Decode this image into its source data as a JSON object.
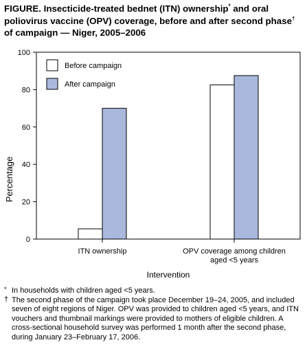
{
  "figure": {
    "title_main": "FIGURE. Insecticide-treated bednet (ITN) ownership",
    "title_star": "*",
    "title_mid": " and oral poliovirus vaccine (OPV) coverage, before and after second phase",
    "title_dagger": "†",
    "title_end": " of campaign — Niger, 2005–2006"
  },
  "chart_data": {
    "type": "bar",
    "ylabel": "Percentage",
    "xlabel": "Intervention",
    "ylim": [
      0,
      100
    ],
    "yticks": [
      0,
      20,
      40,
      60,
      80,
      100
    ],
    "grid": false,
    "legend_position": "top-left",
    "categories": [
      [
        "ITN ownership"
      ],
      [
        "OPV coverage among children",
        "aged <5 years"
      ]
    ],
    "series": [
      {
        "name": "Before campaign",
        "color": "#ffffff",
        "values": [
          5.5,
          82.5
        ]
      },
      {
        "name": "After campaign",
        "color": "#a9b8dc",
        "values": [
          70,
          87.5
        ]
      }
    ]
  },
  "footnotes": [
    {
      "mark": "*",
      "text": "In households with children aged <5 years."
    },
    {
      "mark": "†",
      "text": "The second phase of the campaign took place December 19–24, 2005, and included seven of eight regions of Niger. OPV was provided to children aged <5 years, and ITN vouchers and thumbnail markings were provided to mothers of eligible children. A cross-sectional household survey was performed 1 month after the second phase, during January 23–February 17, 2006."
    }
  ]
}
